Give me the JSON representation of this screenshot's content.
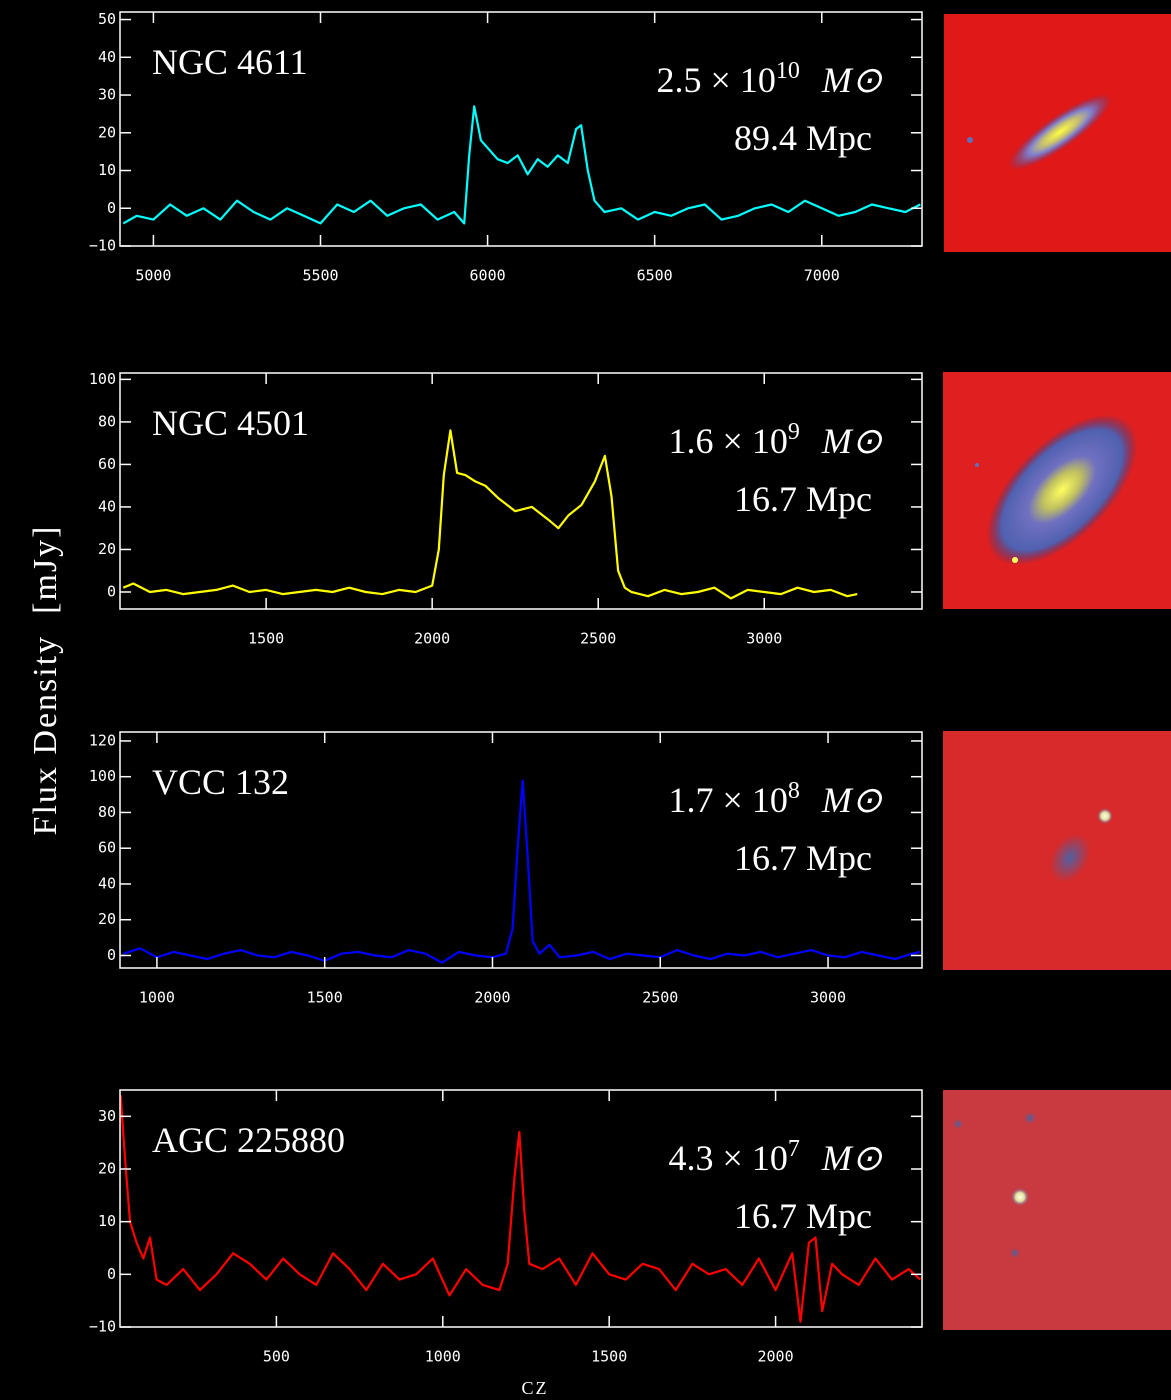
{
  "figure": {
    "ylabel": "Flux Density  [mJy]",
    "xlabel": "cz"
  },
  "chart_data": [
    {
      "type": "line",
      "label": "NGC 4611",
      "mass_base": "2.5 × 10",
      "mass_exponent": "10",
      "mass_unit": "M⊙",
      "distance": "89.4 Mpc",
      "color": "#00ffff",
      "x": [
        4910,
        4950,
        5000,
        5050,
        5100,
        5150,
        5200,
        5250,
        5300,
        5350,
        5400,
        5450,
        5500,
        5550,
        5600,
        5650,
        5700,
        5750,
        5800,
        5850,
        5900,
        5930,
        5945,
        5960,
        5980,
        6000,
        6030,
        6060,
        6090,
        6120,
        6150,
        6180,
        6210,
        6240,
        6265,
        6280,
        6300,
        6320,
        6350,
        6400,
        6450,
        6500,
        6550,
        6600,
        6650,
        6700,
        6750,
        6800,
        6850,
        6900,
        6950,
        7000,
        7050,
        7100,
        7150,
        7200,
        7250,
        7295
      ],
      "values": [
        -4,
        -2,
        -3,
        1,
        -2,
        0,
        -3,
        2,
        -1,
        -3,
        0,
        -2,
        -4,
        1,
        -1,
        2,
        -2,
        0,
        1,
        -3,
        -1,
        -4,
        14,
        27,
        18,
        16,
        13,
        12,
        14,
        9,
        13,
        11,
        14,
        12,
        21,
        22,
        10,
        2,
        -1,
        0,
        -3,
        -1,
        -2,
        0,
        1,
        -3,
        -2,
        0,
        1,
        -1,
        2,
        0,
        -2,
        -1,
        1,
        0,
        -1,
        1
      ],
      "xlim": [
        4900,
        7300
      ],
      "ylim": [
        -10,
        52
      ],
      "xticks": [
        5000,
        5500,
        6000,
        6500,
        7000
      ],
      "yticks": [
        {
          "value": -10,
          "label": "−10"
        },
        0,
        10,
        20,
        30,
        40,
        50
      ]
    },
    {
      "type": "line",
      "label": "NGC 4501",
      "mass_base": "1.6 × 10",
      "mass_exponent": "9",
      "mass_unit": "M⊙",
      "distance": "16.7 Mpc",
      "color": "#ffff00",
      "x": [
        1070,
        1100,
        1150,
        1200,
        1250,
        1300,
        1350,
        1400,
        1450,
        1500,
        1550,
        1600,
        1650,
        1700,
        1750,
        1800,
        1850,
        1900,
        1950,
        2000,
        2020,
        2035,
        2055,
        2075,
        2100,
        2130,
        2160,
        2200,
        2250,
        2300,
        2350,
        2380,
        2410,
        2450,
        2490,
        2520,
        2540,
        2560,
        2580,
        2600,
        2650,
        2700,
        2750,
        2800,
        2850,
        2900,
        2950,
        3000,
        3050,
        3100,
        3150,
        3200,
        3250,
        3280
      ],
      "values": [
        2,
        4,
        0,
        1,
        -1,
        0,
        1,
        3,
        0,
        1,
        -1,
        0,
        1,
        0,
        2,
        0,
        -1,
        1,
        0,
        3,
        20,
        55,
        76,
        56,
        55,
        52,
        50,
        44,
        38,
        40,
        34,
        30,
        36,
        41,
        52,
        64,
        45,
        10,
        2,
        0,
        -2,
        1,
        -1,
        0,
        2,
        -3,
        1,
        0,
        -1,
        2,
        0,
        1,
        -2,
        -1
      ],
      "xlim": [
        1060,
        3475
      ],
      "ylim": [
        -8,
        103
      ],
      "xticks": [
        1500,
        2000,
        2500,
        3000
      ],
      "yticks": [
        0,
        20,
        40,
        60,
        80,
        100
      ]
    },
    {
      "type": "line",
      "label": "VCC 132",
      "mass_base": "1.7 × 10",
      "mass_exponent": "8",
      "mass_unit": "M⊙",
      "distance": "16.7 Mpc",
      "color": "#0000ff",
      "x": [
        900,
        950,
        1000,
        1050,
        1100,
        1150,
        1200,
        1250,
        1300,
        1350,
        1400,
        1450,
        1500,
        1550,
        1600,
        1650,
        1700,
        1750,
        1800,
        1850,
        1900,
        1950,
        2000,
        2040,
        2060,
        2075,
        2090,
        2105,
        2120,
        2140,
        2170,
        2200,
        2250,
        2300,
        2350,
        2400,
        2450,
        2500,
        2550,
        2600,
        2650,
        2700,
        2750,
        2800,
        2850,
        2900,
        2950,
        3000,
        3050,
        3100,
        3150,
        3200,
        3250,
        3275
      ],
      "values": [
        1,
        4,
        -1,
        2,
        0,
        -2,
        1,
        3,
        0,
        -1,
        2,
        0,
        -3,
        1,
        2,
        0,
        -1,
        3,
        1,
        -4,
        2,
        0,
        -1,
        1,
        15,
        60,
        98,
        55,
        8,
        1,
        6,
        -1,
        0,
        2,
        -2,
        1,
        0,
        -1,
        3,
        0,
        -2,
        1,
        0,
        2,
        -1,
        1,
        3,
        0,
        -1,
        2,
        0,
        -2,
        1,
        2
      ],
      "xlim": [
        890,
        3280
      ],
      "ylim": [
        -7,
        125
      ],
      "xticks": [
        1000,
        1500,
        2000,
        2500,
        3000
      ],
      "yticks": [
        0,
        20,
        40,
        60,
        80,
        100,
        120
      ]
    },
    {
      "type": "line",
      "label": "AGC 225880",
      "mass_base": "4.3 × 10",
      "mass_exponent": "7",
      "mass_unit": "M⊙",
      "distance": "16.7 Mpc",
      "color": "#ff0000",
      "x": [
        32,
        45,
        60,
        80,
        100,
        120,
        140,
        170,
        220,
        270,
        320,
        370,
        420,
        470,
        520,
        570,
        620,
        670,
        720,
        770,
        820,
        870,
        920,
        970,
        1020,
        1070,
        1120,
        1170,
        1195,
        1215,
        1230,
        1245,
        1260,
        1300,
        1350,
        1400,
        1450,
        1500,
        1550,
        1600,
        1650,
        1700,
        1750,
        1800,
        1850,
        1900,
        1950,
        2000,
        2050,
        2075,
        2100,
        2120,
        2140,
        2170,
        2200,
        2250,
        2300,
        2350,
        2400,
        2435
      ],
      "values": [
        34,
        22,
        10,
        6,
        3,
        7,
        -1,
        -2,
        1,
        -3,
        0,
        4,
        2,
        -1,
        3,
        0,
        -2,
        4,
        1,
        -3,
        2,
        -1,
        0,
        3,
        -4,
        1,
        -2,
        -3,
        2,
        18,
        27,
        12,
        2,
        1,
        3,
        -2,
        4,
        0,
        -1,
        2,
        1,
        -3,
        2,
        0,
        1,
        -2,
        3,
        -3,
        4,
        -9,
        6,
        7,
        -7,
        2,
        0,
        -2,
        3,
        -1,
        1,
        -1
      ],
      "xlim": [
        30,
        2440
      ],
      "ylim": [
        -10,
        35
      ],
      "xticks": [
        500,
        1000,
        1500,
        2000
      ],
      "yticks": [
        {
          "value": -10,
          "label": "−10"
        },
        0,
        10,
        20,
        30
      ]
    }
  ]
}
